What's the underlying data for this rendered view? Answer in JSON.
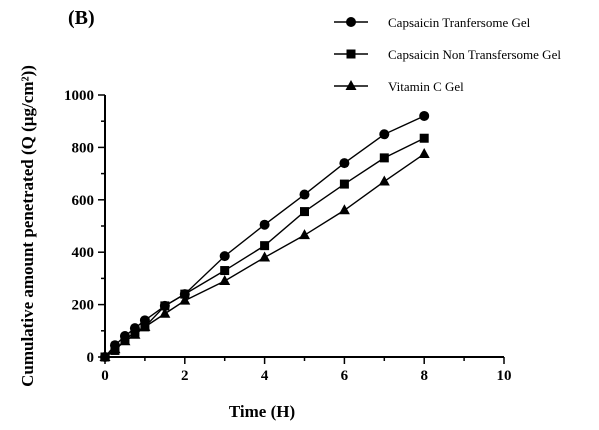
{
  "chart_data": {
    "type": "line",
    "panel_label": "(B)",
    "title": "",
    "xlabel": "Time (H)",
    "ylabel": "Cumulative amount penetrated (Q (µg/cm²))",
    "xlim": [
      0,
      10
    ],
    "ylim": [
      0,
      1000
    ],
    "x_ticks": [
      "0",
      "2",
      "4",
      "6",
      "8",
      "10"
    ],
    "y_ticks": [
      "0",
      "200",
      "400",
      "600",
      "800",
      "1000"
    ],
    "grid": false,
    "legend_position": "top-right",
    "series": [
      {
        "name": "Capsaicin Tranfersome Gel",
        "marker": "circle",
        "x": [
          0,
          0.25,
          0.5,
          0.75,
          1,
          1.5,
          2,
          3,
          4,
          5,
          6,
          7,
          8
        ],
        "y": [
          0,
          45,
          80,
          110,
          140,
          195,
          240,
          385,
          505,
          620,
          740,
          850,
          920
        ]
      },
      {
        "name": "Capsaicin Non Transfersome Gel",
        "marker": "square",
        "x": [
          0,
          0.25,
          0.5,
          0.75,
          1,
          1.5,
          2,
          3,
          4,
          5,
          6,
          7,
          8
        ],
        "y": [
          0,
          25,
          65,
          95,
          115,
          195,
          240,
          330,
          425,
          555,
          660,
          760,
          835
        ]
      },
      {
        "name": "Vitamin C Gel",
        "marker": "triangle",
        "x": [
          0,
          0.25,
          0.5,
          0.75,
          1,
          1.5,
          2,
          3,
          4,
          5,
          6,
          7,
          8
        ],
        "y": [
          0,
          30,
          60,
          85,
          115,
          165,
          215,
          290,
          380,
          465,
          560,
          670,
          775
        ]
      }
    ]
  }
}
